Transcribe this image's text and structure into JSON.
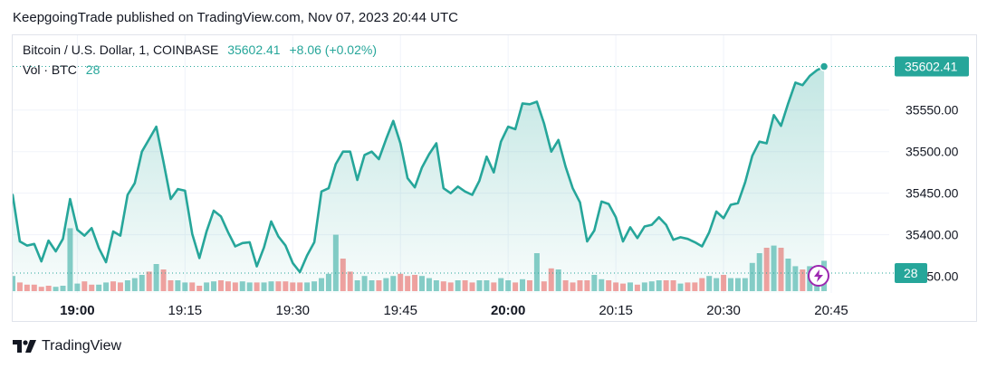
{
  "header": {
    "published_text": "KeepgoingTrade published on TradingView.com, Nov 07, 2023 20:44 UTC"
  },
  "legend": {
    "symbol": "Bitcoin / U.S. Dollar, 1, COINBASE",
    "price": "35602.41",
    "change": "+8.06 (+0.02%)",
    "vol_label": "Vol · BTC",
    "vol_value": "28"
  },
  "brand": {
    "name": "TradingView",
    "icon": "tradingview-logo-icon"
  },
  "colors": {
    "line": "#26a69a",
    "up": "#26a69a",
    "down": "#ef5350",
    "area": "#26a69a"
  },
  "chart_data": {
    "type": "area",
    "ylim": [
      35330,
      35640
    ],
    "y_ticks": [
      35400,
      35450,
      35500,
      35550
    ],
    "y_tick_labels": [
      "35400.00",
      "35450.00",
      "35500.00",
      "35550.00"
    ],
    "x_ticks": [
      {
        "minute": 1140,
        "label": "19:00",
        "bold": true
      },
      {
        "minute": 1155,
        "label": "19:15",
        "bold": false
      },
      {
        "minute": 1170,
        "label": "19:30",
        "bold": false
      },
      {
        "minute": 1185,
        "label": "19:45",
        "bold": false
      },
      {
        "minute": 1200,
        "label": "20:00",
        "bold": true
      },
      {
        "minute": 1215,
        "label": "20:15",
        "bold": false
      },
      {
        "minute": 1230,
        "label": "20:30",
        "bold": false
      },
      {
        "minute": 1245,
        "label": "20:45",
        "bold": false
      }
    ],
    "last_price_label": "35602.41",
    "last_volume_label": "28",
    "start_minute": 1131,
    "price": [
      35448,
      35392,
      35387,
      35389,
      35368,
      35393,
      35380,
      35395,
      35443,
      35406,
      35399,
      35408,
      35384,
      35367,
      35404,
      35399,
      35448,
      35462,
      35500,
      35515,
      35530,
      35488,
      35443,
      35455,
      35453,
      35401,
      35372,
      35404,
      35429,
      35422,
      35403,
      35386,
      35390,
      35391,
      35362,
      35385,
      35416,
      35398,
      35387,
      35366,
      35355,
      35375,
      35391,
      35452,
      35456,
      35485,
      35500,
      35500,
      35466,
      35496,
      35500,
      35491,
      35515,
      35537,
      35510,
      35468,
      35457,
      35481,
      35497,
      35510,
      35456,
      35450,
      35458,
      35452,
      35448,
      35465,
      35494,
      35475,
      35512,
      35530,
      35527,
      35558,
      35557,
      35560,
      35534,
      35500,
      35514,
      35482,
      35456,
      35439,
      35392,
      35405,
      35440,
      35437,
      35421,
      35392,
      35409,
      35396,
      35410,
      35412,
      35421,
      35412,
      35394,
      35397,
      35395,
      35391,
      35386,
      35403,
      35428,
      35420,
      35436,
      35438,
      35463,
      35495,
      35512,
      35510,
      35544,
      35531,
      35558,
      35583,
      35580,
      35591,
      35598,
      35602.41
    ],
    "volume": [
      14,
      8,
      6,
      6,
      4,
      5,
      4,
      5,
      58,
      7,
      9,
      6,
      6,
      8,
      9,
      8,
      10,
      12,
      15,
      18,
      25,
      20,
      10,
      10,
      8,
      8,
      5,
      8,
      9,
      10,
      9,
      8,
      9,
      8,
      8,
      8,
      9,
      9,
      9,
      8,
      8,
      8,
      9,
      12,
      16,
      52,
      30,
      18,
      10,
      14,
      10,
      10,
      12,
      14,
      16,
      14,
      15,
      14,
      12,
      10,
      9,
      8,
      10,
      10,
      8,
      10,
      10,
      8,
      12,
      10,
      8,
      11,
      10,
      35,
      9,
      21,
      20,
      10,
      8,
      10,
      10,
      15,
      11,
      10,
      8,
      7,
      8,
      6,
      8,
      9,
      10,
      10,
      10,
      7,
      8,
      8,
      12,
      14,
      12,
      15,
      12,
      12,
      12,
      26,
      35,
      40,
      42,
      40,
      30,
      23,
      20,
      23,
      16,
      28
    ],
    "volume_up": [
      1,
      0,
      0,
      0,
      0,
      0,
      1,
      1,
      1,
      1,
      0,
      0,
      1,
      1,
      0,
      0,
      1,
      1,
      1,
      0,
      1,
      0,
      0,
      1,
      1,
      0,
      0,
      1,
      1,
      0,
      0,
      0,
      1,
      1,
      0,
      1,
      1,
      0,
      0,
      0,
      0,
      1,
      1,
      1,
      1,
      1,
      0,
      0,
      1,
      1,
      1,
      0,
      1,
      1,
      0,
      0,
      0,
      1,
      1,
      1,
      0,
      0,
      1,
      0,
      0,
      1,
      1,
      0,
      1,
      1,
      0,
      1,
      0,
      1,
      0,
      0,
      1,
      0,
      0,
      0,
      0,
      1,
      1,
      0,
      0,
      0,
      1,
      0,
      1,
      1,
      1,
      0,
      0,
      1,
      0,
      0,
      0,
      1,
      1,
      0,
      1,
      1,
      1,
      1,
      1,
      0,
      1,
      0,
      1,
      1,
      0,
      1,
      1,
      1
    ],
    "vol_max": 60
  }
}
